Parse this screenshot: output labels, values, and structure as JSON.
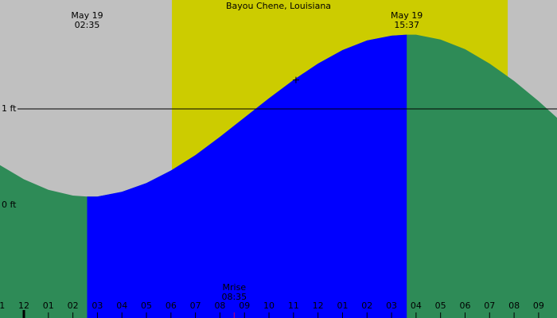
{
  "chart_data": {
    "type": "tide",
    "title": "Bayou Chene, Louisiana",
    "x": [
      -1,
      0,
      1,
      2,
      2.58,
      3,
      4,
      5,
      6,
      7,
      8,
      9,
      10,
      11,
      12,
      13,
      14,
      15,
      15.62,
      16,
      17,
      18,
      19,
      20,
      21,
      22
    ],
    "values": [
      0.42,
      0.27,
      0.16,
      0.1,
      0.09,
      0.09,
      0.14,
      0.23,
      0.36,
      0.52,
      0.71,
      0.91,
      1.11,
      1.3,
      1.47,
      1.61,
      1.71,
      1.76,
      1.77,
      1.77,
      1.72,
      1.62,
      1.47,
      1.29,
      1.08,
      0.85
    ],
    "rising_color": "#0000ff",
    "falling_color": "#2e8b57",
    "daylight": [
      6.04,
      19.74
    ],
    "daylight_color": "#cccc00",
    "night_color": "#c0c0c0",
    "xlim": [
      -0.974,
      21.75
    ],
    "ylim": [
      -1.17,
      2.13
    ],
    "yticks": [
      {
        "value": 1,
        "label": "1 ft"
      },
      {
        "value": 0,
        "label": "0 ft"
      }
    ],
    "reference_line": 1,
    "xticks": [
      {
        "value": -1,
        "label": "11"
      },
      {
        "value": 0,
        "label": "12"
      },
      {
        "value": 1,
        "label": "01"
      },
      {
        "value": 2,
        "label": "02"
      },
      {
        "value": 3,
        "label": "03"
      },
      {
        "value": 4,
        "label": "04"
      },
      {
        "value": 5,
        "label": "05"
      },
      {
        "value": 6,
        "label": "06"
      },
      {
        "value": 7,
        "label": "07"
      },
      {
        "value": 8,
        "label": "08"
      },
      {
        "value": 9,
        "label": "09"
      },
      {
        "value": 10,
        "label": "10"
      },
      {
        "value": 11,
        "label": "11"
      },
      {
        "value": 12,
        "label": "12"
      },
      {
        "value": 13,
        "label": "01"
      },
      {
        "value": 14,
        "label": "02"
      },
      {
        "value": 15,
        "label": "03"
      },
      {
        "value": 16,
        "label": "04"
      },
      {
        "value": 17,
        "label": "05"
      },
      {
        "value": 18,
        "label": "06"
      },
      {
        "value": 19,
        "label": "07"
      },
      {
        "value": 20,
        "label": "08"
      },
      {
        "value": 21,
        "label": "09"
      }
    ],
    "extremes": [
      {
        "x": 2.58,
        "date": "May 19",
        "time": "02:35"
      },
      {
        "x": 15.62,
        "date": "May 19",
        "time": "15:37"
      }
    ],
    "moonrise": {
      "x": 8.58,
      "label": "Mrise",
      "time": "08:35",
      "color": "#cc0066"
    },
    "now": {
      "x": 11.1,
      "value": 1.3
    }
  }
}
